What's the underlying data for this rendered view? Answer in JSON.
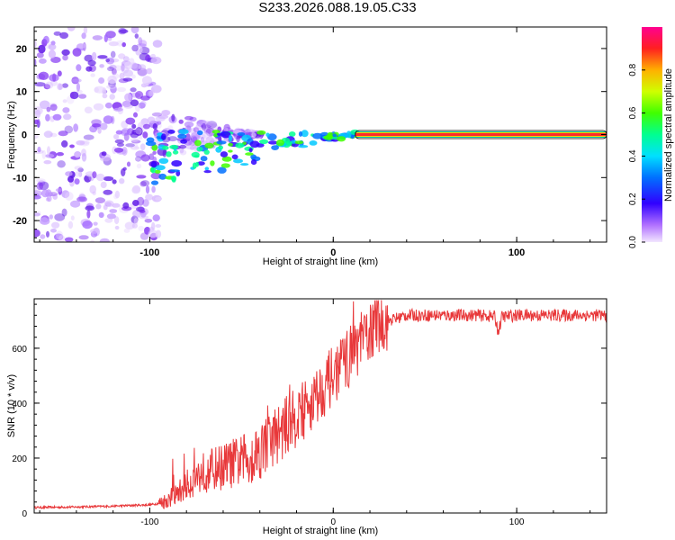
{
  "title": "S233.2026.088.19.05.C33",
  "colors": {
    "axis": "#000000",
    "snr_line": "#e8383a",
    "spectro_scatter": "#8a2be2",
    "ridge": "#ff2a2a"
  },
  "chart_data": [
    {
      "type": "heatmap",
      "xlabel": "Height of straight line (km)",
      "ylabel": "Frequency (Hz)",
      "xlim": [
        -163,
        149
      ],
      "ylim": [
        -25,
        25
      ],
      "x_ticks": [
        -100,
        0,
        100
      ],
      "y_ticks": [
        -20,
        -10,
        0,
        10,
        20
      ],
      "colorbar": {
        "label": "Normalized spectral amplitude",
        "range": [
          0,
          1
        ],
        "ticks": [
          "0.0",
          "0.2",
          "0.4",
          "0.6",
          "0.8"
        ],
        "tick_values": [
          0.0,
          0.2,
          0.4,
          0.6,
          0.8
        ]
      },
      "description_series": [
        {
          "name": "noise region",
          "x_range": [
            -163,
            -100
          ],
          "freq_spread": 25,
          "amplitude": 0.15
        },
        {
          "name": "onset",
          "x_range": [
            -100,
            -40
          ],
          "freq_spread": 8,
          "amplitude": 0.3
        },
        {
          "name": "converging tone",
          "x_range": [
            -40,
            12
          ],
          "freq_spread": 3,
          "amplitude": 0.6
        },
        {
          "name": "steady tone",
          "x_range": [
            12,
            149
          ],
          "freq": 0,
          "amplitude": 1.0
        }
      ]
    },
    {
      "type": "line",
      "xlabel": "Height of straight line (km)",
      "ylabel": "SNR (10 * v/v)",
      "xlim": [
        -163,
        149
      ],
      "ylim": [
        0,
        780
      ],
      "x_ticks": [
        -100,
        0,
        100
      ],
      "y_ticks": [
        0,
        200,
        400,
        600
      ],
      "series": [
        {
          "name": "SNR",
          "x": [
            -163,
            -140,
            -120,
            -100,
            -95,
            -90,
            -85,
            -80,
            -75,
            -70,
            -65,
            -60,
            -55,
            -50,
            -45,
            -40,
            -35,
            -30,
            -25,
            -20,
            -15,
            -10,
            -5,
            0,
            5,
            10,
            15,
            20,
            25,
            30,
            35,
            40,
            50,
            60,
            70,
            80,
            88,
            90,
            92,
            100,
            110,
            120,
            130,
            140,
            149
          ],
          "values": [
            20,
            22,
            25,
            30,
            35,
            50,
            70,
            100,
            130,
            150,
            160,
            170,
            180,
            190,
            200,
            230,
            260,
            290,
            320,
            350,
            380,
            420,
            460,
            500,
            540,
            580,
            620,
            660,
            690,
            700,
            710,
            720,
            720,
            720,
            720,
            720,
            715,
            660,
            715,
            720,
            720,
            720,
            720,
            720,
            720
          ]
        }
      ]
    }
  ]
}
